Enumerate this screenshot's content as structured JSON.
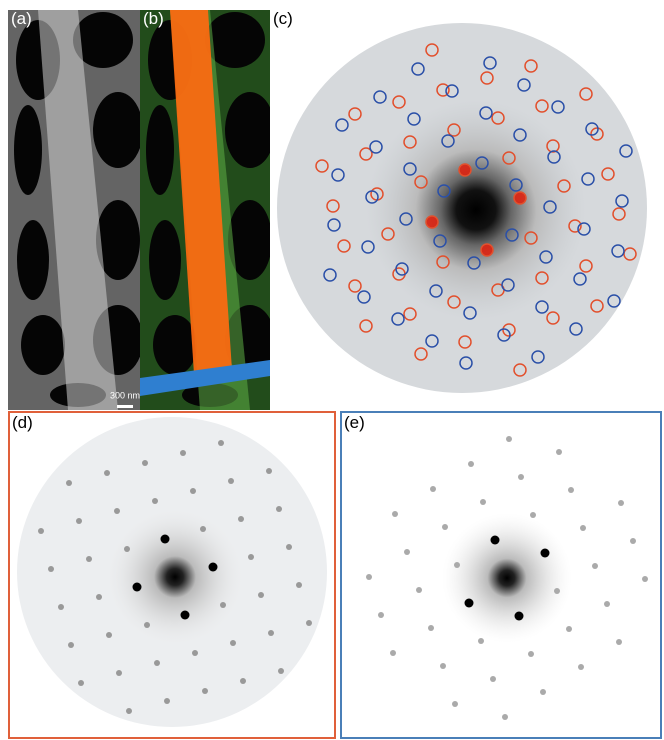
{
  "panels": {
    "a": "(a)",
    "b": "(b)",
    "c": "(c)",
    "d": "(d)",
    "e": "(e)"
  },
  "scale_bar": "300 nm"
}
